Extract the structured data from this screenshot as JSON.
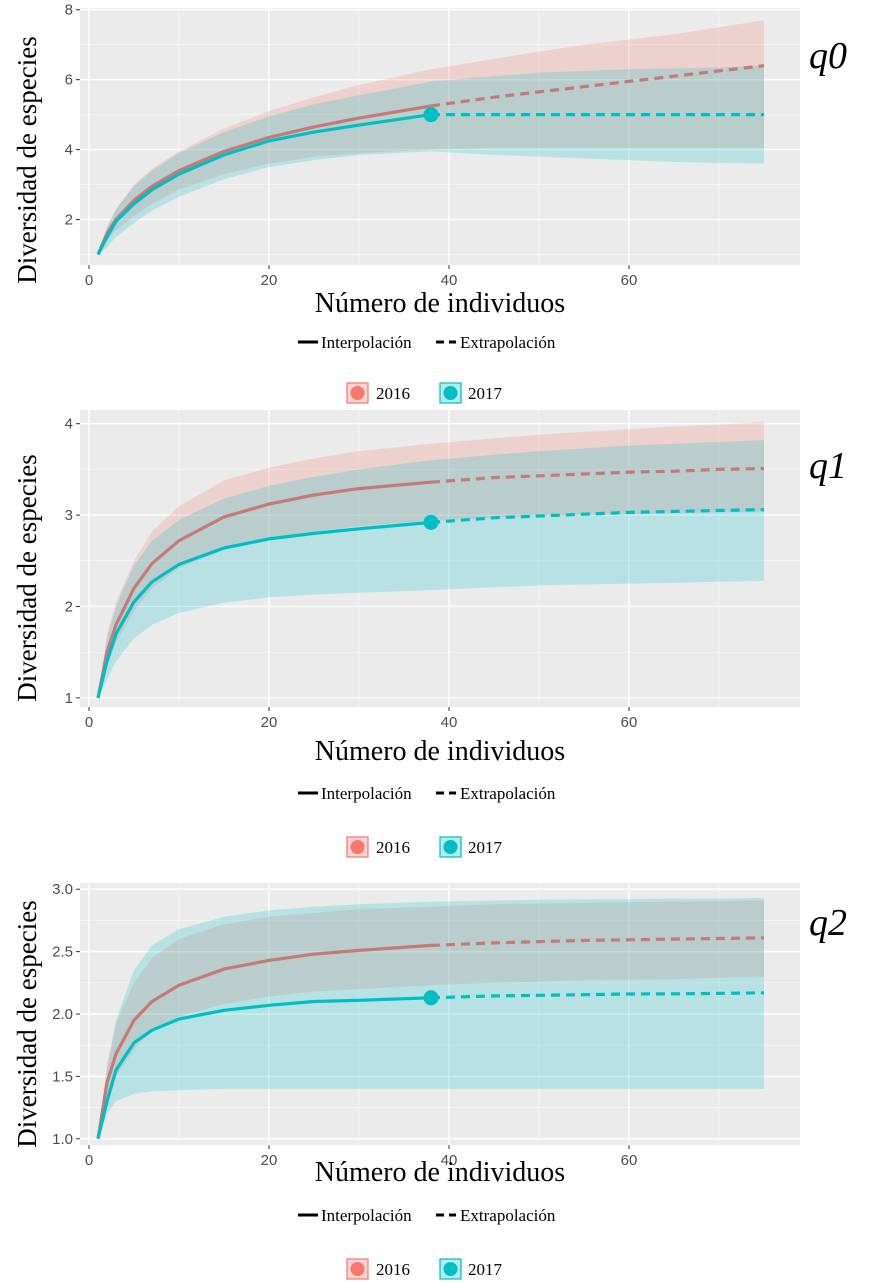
{
  "colors": {
    "y2016": "#F8766D",
    "y2017": "#00BFC4",
    "panel_bg": "#EBEBEB",
    "grid": "#FFFFFF"
  },
  "legend": {
    "interpolation_label": "Interpolación",
    "extrapolation_label": "Extrapolación",
    "year_2016": "2016",
    "year_2017": "2017"
  },
  "chart_data": [
    {
      "type": "line",
      "panel_label": "q0",
      "xlabel": "Número de individuos",
      "ylabel": "Diversidad de especies",
      "xlim": [
        -1,
        79
      ],
      "ylim": [
        0.7,
        8.05
      ],
      "xticks": [
        0,
        20,
        40,
        60
      ],
      "yticks": [
        2,
        4,
        6,
        8
      ],
      "series": [
        {
          "name": "2016",
          "x": [
            1,
            2,
            3,
            5,
            7,
            10,
            15,
            20,
            25,
            30,
            38,
            45,
            50,
            55,
            60,
            65,
            70,
            75
          ],
          "y": [
            1.0,
            1.6,
            2.0,
            2.55,
            2.95,
            3.4,
            3.95,
            4.35,
            4.65,
            4.9,
            5.25,
            5.5,
            5.65,
            5.8,
            5.95,
            6.1,
            6.25,
            6.4
          ],
          "lower": [
            1.0,
            1.4,
            1.7,
            2.1,
            2.45,
            2.85,
            3.3,
            3.6,
            3.8,
            3.9,
            4.0,
            4.05,
            4.05,
            4.05,
            4.05,
            4.05,
            4.05,
            4.05
          ],
          "upper": [
            1.0,
            1.8,
            2.3,
            3.0,
            3.45,
            3.95,
            4.6,
            5.1,
            5.5,
            5.85,
            6.3,
            6.6,
            6.8,
            7.0,
            7.15,
            7.3,
            7.5,
            7.7
          ],
          "observed": 38
        },
        {
          "name": "2017",
          "x": [
            1,
            2,
            3,
            5,
            7,
            10,
            15,
            20,
            25,
            30,
            38,
            45,
            50,
            55,
            60,
            65,
            70,
            75
          ],
          "y": [
            1.0,
            1.5,
            1.95,
            2.45,
            2.85,
            3.3,
            3.85,
            4.25,
            4.5,
            4.7,
            5.0,
            5.0,
            5.0,
            5.0,
            5.0,
            5.0,
            5.0,
            5.0
          ],
          "lower": [
            1.0,
            1.2,
            1.5,
            1.9,
            2.25,
            2.65,
            3.15,
            3.5,
            3.7,
            3.85,
            3.95,
            3.85,
            3.8,
            3.75,
            3.7,
            3.65,
            3.62,
            3.6
          ],
          "upper": [
            1.0,
            1.75,
            2.3,
            2.95,
            3.4,
            3.9,
            4.5,
            4.95,
            5.3,
            5.55,
            5.95,
            6.1,
            6.2,
            6.25,
            6.3,
            6.32,
            6.35,
            6.4
          ],
          "observed": 38
        }
      ]
    },
    {
      "type": "line",
      "panel_label": "q1",
      "xlabel": "Número de individuos",
      "ylabel": "Diversidad de especies",
      "xlim": [
        -1,
        79
      ],
      "ylim": [
        0.9,
        4.15
      ],
      "xticks": [
        0,
        20,
        40,
        60
      ],
      "yticks": [
        1,
        2,
        3,
        4
      ],
      "series": [
        {
          "name": "2016",
          "x": [
            1,
            2,
            3,
            5,
            7,
            10,
            15,
            20,
            25,
            30,
            38,
            45,
            50,
            55,
            60,
            65,
            70,
            75
          ],
          "y": [
            1.0,
            1.5,
            1.8,
            2.2,
            2.47,
            2.72,
            2.98,
            3.12,
            3.22,
            3.29,
            3.36,
            3.41,
            3.43,
            3.45,
            3.47,
            3.48,
            3.5,
            3.51
          ],
          "lower": [
            1.0,
            1.35,
            1.6,
            1.95,
            2.2,
            2.42,
            2.62,
            2.75,
            2.82,
            2.88,
            2.94,
            2.97,
            2.99,
            3.0,
            3.01,
            3.02,
            3.03,
            3.04
          ],
          "upper": [
            1.0,
            1.7,
            2.05,
            2.5,
            2.82,
            3.1,
            3.38,
            3.52,
            3.62,
            3.7,
            3.78,
            3.84,
            3.88,
            3.91,
            3.94,
            3.97,
            3.99,
            4.02
          ],
          "observed": 38
        },
        {
          "name": "2017",
          "x": [
            1,
            2,
            3,
            5,
            7,
            10,
            15,
            20,
            25,
            30,
            38,
            45,
            50,
            55,
            60,
            65,
            70,
            75
          ],
          "y": [
            1.0,
            1.4,
            1.7,
            2.05,
            2.27,
            2.46,
            2.64,
            2.74,
            2.8,
            2.85,
            2.92,
            2.97,
            2.99,
            3.01,
            3.03,
            3.04,
            3.05,
            3.06
          ],
          "lower": [
            1.0,
            1.2,
            1.4,
            1.65,
            1.8,
            1.93,
            2.04,
            2.1,
            2.13,
            2.15,
            2.18,
            2.21,
            2.23,
            2.24,
            2.25,
            2.26,
            2.27,
            2.28
          ],
          "upper": [
            1.0,
            1.65,
            2.0,
            2.45,
            2.72,
            2.95,
            3.18,
            3.32,
            3.42,
            3.5,
            3.6,
            3.66,
            3.7,
            3.73,
            3.76,
            3.78,
            3.8,
            3.82
          ],
          "observed": 38
        }
      ]
    },
    {
      "type": "line",
      "panel_label": "q2",
      "xlabel": "Número de individuos",
      "ylabel": "Diversidad de especies",
      "xlim": [
        -1,
        79
      ],
      "ylim": [
        0.95,
        3.05
      ],
      "xticks": [
        0,
        20,
        40,
        60
      ],
      "yticks": [
        1.0,
        1.5,
        2.0,
        2.5,
        3.0
      ],
      "series": [
        {
          "name": "2016",
          "x": [
            1,
            2,
            3,
            5,
            7,
            10,
            15,
            20,
            25,
            30,
            38,
            45,
            50,
            55,
            60,
            65,
            70,
            75
          ],
          "y": [
            1.0,
            1.45,
            1.68,
            1.95,
            2.1,
            2.23,
            2.36,
            2.43,
            2.48,
            2.51,
            2.55,
            2.57,
            2.58,
            2.59,
            2.595,
            2.6,
            2.605,
            2.61
          ],
          "lower": [
            1.0,
            1.35,
            1.5,
            1.72,
            1.86,
            1.98,
            2.08,
            2.14,
            2.18,
            2.2,
            2.23,
            2.25,
            2.26,
            2.27,
            2.275,
            2.28,
            2.29,
            2.3
          ],
          "upper": [
            1.0,
            1.6,
            1.92,
            2.25,
            2.45,
            2.6,
            2.72,
            2.78,
            2.81,
            2.84,
            2.86,
            2.88,
            2.885,
            2.89,
            2.895,
            2.9,
            2.905,
            2.91
          ],
          "observed": 38
        },
        {
          "name": "2017",
          "x": [
            1,
            2,
            3,
            5,
            7,
            10,
            15,
            20,
            25,
            30,
            38,
            45,
            50,
            55,
            60,
            65,
            70,
            75
          ],
          "y": [
            1.0,
            1.3,
            1.55,
            1.77,
            1.87,
            1.96,
            2.03,
            2.07,
            2.1,
            2.11,
            2.13,
            2.145,
            2.15,
            2.155,
            2.16,
            2.162,
            2.165,
            2.17
          ],
          "lower": [
            1.0,
            1.2,
            1.3,
            1.36,
            1.38,
            1.39,
            1.4,
            1.4,
            1.4,
            1.4,
            1.4,
            1.4,
            1.4,
            1.4,
            1.4,
            1.4,
            1.4,
            1.4
          ],
          "upper": [
            1.0,
            1.55,
            1.95,
            2.35,
            2.55,
            2.68,
            2.78,
            2.83,
            2.86,
            2.88,
            2.9,
            2.91,
            2.915,
            2.92,
            2.92,
            2.925,
            2.925,
            2.93
          ],
          "observed": 38
        }
      ]
    }
  ]
}
